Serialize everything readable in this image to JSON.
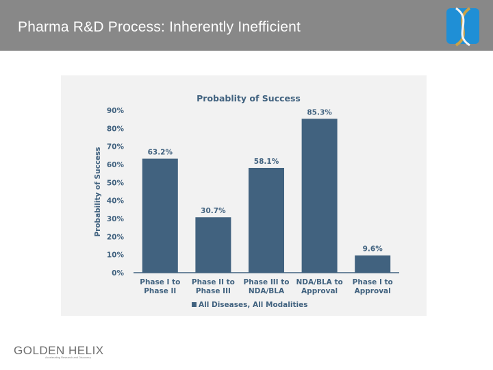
{
  "header": {
    "title": "Pharma R&D Process: Inherently Inefficient",
    "background": "#888888"
  },
  "logo": {
    "icon": "dna-helix-icon",
    "colors": [
      "#1f8fd6",
      "#c9a24a"
    ]
  },
  "footer": {
    "brand": "GOLDEN HELIX",
    "tagline": "Accelerating Research and Discovery"
  },
  "chart_data": {
    "type": "bar",
    "title": "Probablity of Success",
    "ylabel": "Probability of Success",
    "xlabel": "",
    "ylim": [
      0,
      90
    ],
    "yticks": [
      0,
      10,
      20,
      30,
      40,
      50,
      60,
      70,
      80,
      90
    ],
    "ytick_labels": [
      "0%",
      "10%",
      "20%",
      "30%",
      "40%",
      "50%",
      "60%",
      "70%",
      "80%",
      "90%"
    ],
    "categories": [
      [
        "Phase I to",
        "Phase II"
      ],
      [
        "Phase II to",
        "Phase III"
      ],
      [
        "Phase III to",
        "NDA/BLA"
      ],
      [
        "NDA/BLA to",
        "Approval"
      ],
      [
        "Phase I to",
        "Approval"
      ]
    ],
    "series": [
      {
        "name": "All Diseases, All Modalities",
        "values": [
          63.2,
          30.7,
          58.1,
          85.3,
          9.6
        ],
        "labels": [
          "63.2%",
          "30.7%",
          "58.1%",
          "85.3%",
          "9.6%"
        ],
        "color": "#41627f"
      }
    ],
    "legend_position": "bottom-left",
    "grid": false
  }
}
